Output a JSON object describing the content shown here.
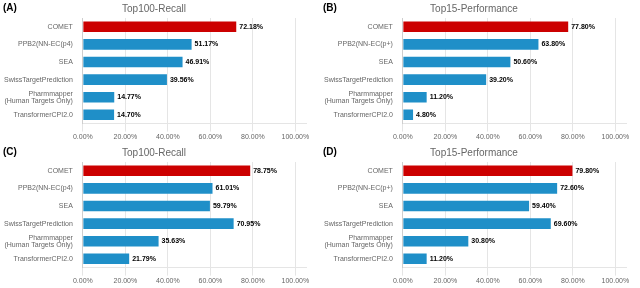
{
  "chart_data": [
    {
      "type": "bar",
      "orientation": "horizontal",
      "title": "Top100-Recall",
      "annotations": [
        "(A)"
      ],
      "categories": [
        "COMET",
        "PPB2(NN-EC(p4)",
        "SEA",
        "SwissTargetPrediction",
        "Pharmmapper\n(Human Targets Only)",
        "TransformerCPI2.0"
      ],
      "values": [
        72.18,
        51.17,
        46.91,
        39.56,
        14.77,
        14.7
      ],
      "value_labels": [
        "72.18%",
        "51.17%",
        "46.91%",
        "39.56%",
        "14.77%",
        "14.70%"
      ],
      "colors": [
        "#cc0000",
        "#1f8fc8",
        "#1f8fc8",
        "#1f8fc8",
        "#1f8fc8",
        "#1f8fc8"
      ],
      "xlim": [
        0,
        105
      ],
      "xticks": [
        {
          "value": 0,
          "label": "0.00%"
        },
        {
          "value": 20,
          "label": "20.00%"
        },
        {
          "value": 40,
          "label": "40.00%"
        },
        {
          "value": 60,
          "label": "60.00%"
        },
        {
          "value": 80,
          "label": "80.00%"
        },
        {
          "value": 100,
          "label": "100.00%"
        }
      ],
      "grid": true,
      "data_labels": true
    },
    {
      "type": "bar",
      "orientation": "horizontal",
      "title": "Top15-Performance",
      "annotations": [
        "(B)"
      ],
      "categories": [
        "COMET",
        "PPB2(NN-EC(p+)",
        "SEA",
        "SwissTargetPrediction",
        "Pharmmapper\n(Human Targets Only)",
        "TransformerCPI2.0"
      ],
      "values": [
        77.8,
        63.8,
        50.6,
        39.2,
        11.2,
        4.8
      ],
      "value_labels": [
        "77.80%",
        "63.80%",
        "50.60%",
        "39.20%",
        "11.20%",
        "4.80%"
      ],
      "colors": [
        "#cc0000",
        "#1f8fc8",
        "#1f8fc8",
        "#1f8fc8",
        "#1f8fc8",
        "#1f8fc8"
      ],
      "xlim": [
        0,
        105
      ],
      "xticks": [
        {
          "value": 0,
          "label": "0.00%"
        },
        {
          "value": 20,
          "label": "20.00%"
        },
        {
          "value": 40,
          "label": "40.00%"
        },
        {
          "value": 60,
          "label": "60.00%"
        },
        {
          "value": 80,
          "label": "80.00%"
        },
        {
          "value": 100,
          "label": "100.00%"
        }
      ],
      "grid": true,
      "data_labels": true
    },
    {
      "type": "bar",
      "orientation": "horizontal",
      "title": "Top100-Recall",
      "annotations": [
        "(C)"
      ],
      "categories": [
        "COMET",
        "PPB2(NN-EC(p4)",
        "SEA",
        "SwissTargetPrediction",
        "Pharmmapper\n(Human Targets Only)",
        "TransformerCPI2.0"
      ],
      "values": [
        78.75,
        61.01,
        59.79,
        70.95,
        35.63,
        21.79
      ],
      "value_labels": [
        "78.75%",
        "61.01%",
        "59.79%",
        "70.95%",
        "35.63%",
        "21.79%"
      ],
      "colors": [
        "#cc0000",
        "#1f8fc8",
        "#1f8fc8",
        "#1f8fc8",
        "#1f8fc8",
        "#1f8fc8"
      ],
      "xlim": [
        0,
        105
      ],
      "xticks": [
        {
          "value": 0,
          "label": "0.00%"
        },
        {
          "value": 20,
          "label": "20.00%"
        },
        {
          "value": 40,
          "label": "40.00%"
        },
        {
          "value": 60,
          "label": "60.00%"
        },
        {
          "value": 80,
          "label": "80.00%"
        },
        {
          "value": 100,
          "label": "100.00%"
        }
      ],
      "grid": true,
      "data_labels": true
    },
    {
      "type": "bar",
      "orientation": "horizontal",
      "title": "Top15-Performance",
      "annotations": [
        "(D)"
      ],
      "categories": [
        "COMET",
        "PPB2(NN-EC(p+)",
        "SEA",
        "SwissTargetPrediction",
        "Pharmmapper\n(Human Targets Only)",
        "TransformerCPI2.0"
      ],
      "values": [
        79.8,
        72.6,
        59.4,
        69.6,
        30.8,
        11.2
      ],
      "value_labels": [
        "79.80%",
        "72.60%",
        "59.40%",
        "69.60%",
        "30.80%",
        "11.20%"
      ],
      "colors": [
        "#cc0000",
        "#1f8fc8",
        "#1f8fc8",
        "#1f8fc8",
        "#1f8fc8",
        "#1f8fc8"
      ],
      "xlim": [
        0,
        105
      ],
      "xticks": [
        {
          "value": 0,
          "label": "0.00%"
        },
        {
          "value": 20,
          "label": "20.00%"
        },
        {
          "value": 40,
          "label": "40.00%"
        },
        {
          "value": 60,
          "label": "60.00%"
        },
        {
          "value": 80,
          "label": "80.00%"
        },
        {
          "value": 100,
          "label": "100.00%"
        }
      ],
      "grid": true,
      "data_labels": true
    }
  ]
}
